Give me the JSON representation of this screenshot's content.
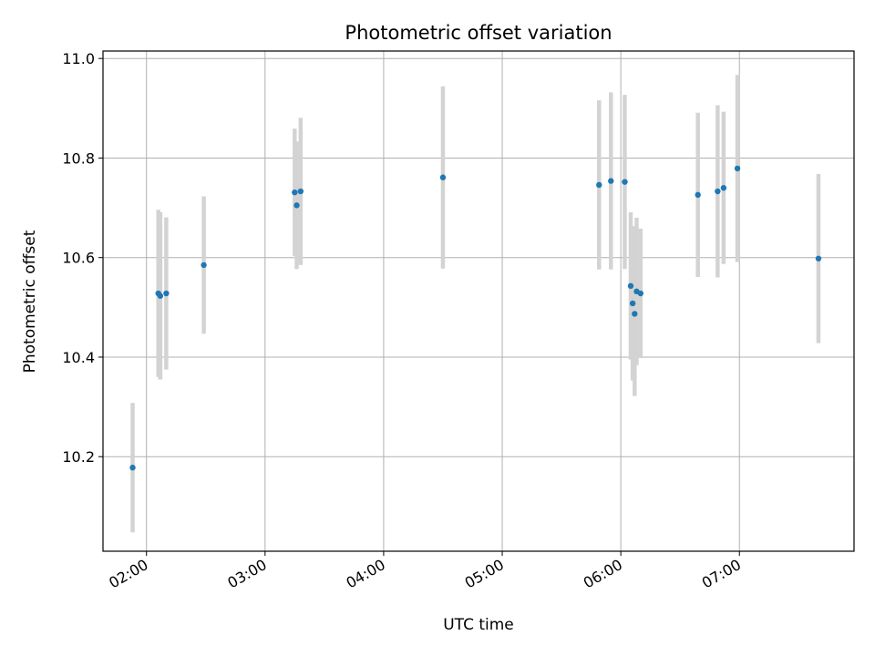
{
  "chart_data": {
    "type": "scatter",
    "title": "Photometric offset variation",
    "xlabel": "UTC time",
    "ylabel": "Photometric offset",
    "x_tick_labels": [
      "02:00",
      "03:00",
      "04:00",
      "05:00",
      "06:00",
      "07:00"
    ],
    "y_tick_labels": [
      "10.2",
      "10.4",
      "10.6",
      "10.8",
      "11.0"
    ],
    "y_ticks": [
      10.2,
      10.4,
      10.6,
      10.8,
      11.0
    ],
    "x_ticks": [
      "02:00",
      "03:00",
      "04:00",
      "05:00",
      "06:00",
      "07:00"
    ],
    "xlim": [
      "01:38",
      "07:58"
    ],
    "ylim": [
      10.01,
      11.015
    ],
    "grid": true,
    "colors": {
      "points": "#1f77b4",
      "error_bars": "#d3d3d3",
      "grid": "#b0b0b0"
    },
    "points": [
      {
        "time": "01:53",
        "y": 10.178,
        "err": 0.13
      },
      {
        "time": "02:06",
        "y": 10.528,
        "err": 0.168
      },
      {
        "time": "02:07",
        "y": 10.523,
        "err": 0.168
      },
      {
        "time": "02:10",
        "y": 10.528,
        "err": 0.153
      },
      {
        "time": "02:29",
        "y": 10.585,
        "err": 0.138
      },
      {
        "time": "03:15",
        "y": 10.731,
        "err": 0.128
      },
      {
        "time": "03:16",
        "y": 10.705,
        "err": 0.128
      },
      {
        "time": "03:18",
        "y": 10.733,
        "err": 0.148
      },
      {
        "time": "04:30",
        "y": 10.761,
        "err": 0.183
      },
      {
        "time": "05:49",
        "y": 10.746,
        "err": 0.17
      },
      {
        "time": "05:55",
        "y": 10.754,
        "err": 0.178
      },
      {
        "time": "06:02",
        "y": 10.752,
        "err": 0.175
      },
      {
        "time": "06:05",
        "y": 10.543,
        "err": 0.148
      },
      {
        "time": "06:06",
        "y": 10.508,
        "err": 0.155
      },
      {
        "time": "06:07",
        "y": 10.487,
        "err": 0.165
      },
      {
        "time": "06:08",
        "y": 10.532,
        "err": 0.148
      },
      {
        "time": "06:10",
        "y": 10.528,
        "err": 0.13
      },
      {
        "time": "06:39",
        "y": 10.726,
        "err": 0.165
      },
      {
        "time": "06:49",
        "y": 10.733,
        "err": 0.173
      },
      {
        "time": "06:52",
        "y": 10.74,
        "err": 0.153
      },
      {
        "time": "06:59",
        "y": 10.779,
        "err": 0.188
      },
      {
        "time": "07:40",
        "y": 10.598,
        "err": 0.17
      }
    ]
  }
}
